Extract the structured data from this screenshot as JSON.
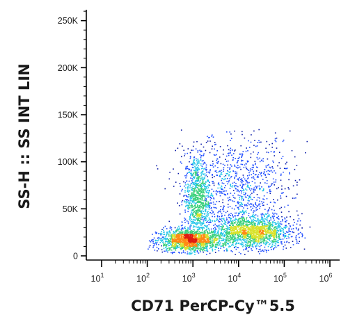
{
  "chart_data": {
    "type": "scatter",
    "style": "density-dot-plot",
    "xlabel": "CD71 PerCP-Cy™5.5",
    "ylabel": "SS-H :: SS INT LIN",
    "x_scale": "log",
    "xlim": [
      10,
      1000000
    ],
    "ylim": [
      0,
      262144
    ],
    "x_ticks": [
      {
        "value": 10,
        "base": "10",
        "exp": "1"
      },
      {
        "value": 100,
        "base": "10",
        "exp": "2"
      },
      {
        "value": 1000,
        "base": "10",
        "exp": "3"
      },
      {
        "value": 10000,
        "base": "10",
        "exp": "4"
      },
      {
        "value": 100000,
        "base": "10",
        "exp": "5"
      },
      {
        "value": 1000000,
        "base": "10",
        "exp": "6"
      }
    ],
    "y_ticks": [
      {
        "value": 0,
        "label": "0"
      },
      {
        "value": 50000,
        "label": "50K"
      },
      {
        "value": 100000,
        "label": "100K"
      },
      {
        "value": 150000,
        "label": "150K"
      },
      {
        "value": 200000,
        "label": "200K"
      },
      {
        "value": 250000,
        "label": "250K"
      }
    ],
    "populations": [
      {
        "name": "CD71-low cluster",
        "x_center": 800,
        "y_center": 17000,
        "weight": 0.3
      },
      {
        "name": "CD71-low high-SS arm",
        "x_center": 1200,
        "y_center": 62000,
        "weight": 0.18
      },
      {
        "name": "CD71-high cluster",
        "x_center": 20000,
        "y_center": 26000,
        "weight": 0.32
      },
      {
        "name": "diffuse cloud",
        "x_center": 15000,
        "y_center": 70000,
        "weight": 0.2
      }
    ],
    "color_scale": [
      "#0a1aa8",
      "#1f4dff",
      "#21c5e8",
      "#3ad07a",
      "#d8e22a",
      "#ff8a14",
      "#e01b10"
    ]
  }
}
